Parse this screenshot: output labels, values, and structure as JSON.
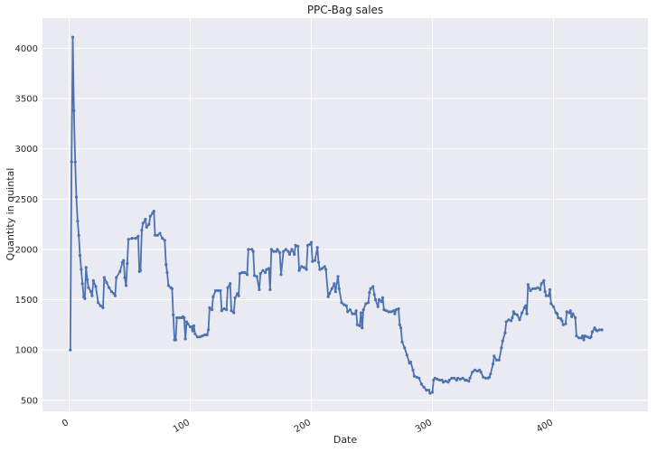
{
  "chart_data": {
    "type": "line",
    "title": "PPC-Bag sales",
    "xlabel": "Date",
    "ylabel": "Quantity in quintal",
    "xlim": [
      -22,
      478
    ],
    "ylim": [
      390,
      4300
    ],
    "x_ticks": [
      0,
      100,
      200,
      300,
      400
    ],
    "y_ticks": [
      500,
      1000,
      1500,
      2000,
      2500,
      3000,
      3500,
      4000
    ],
    "grid": true,
    "series": [
      {
        "color": "#4c72b0",
        "marker": "dot",
        "points": [
          [
            1,
            1000
          ],
          [
            2,
            2870
          ],
          [
            3,
            4110
          ],
          [
            4,
            3380
          ],
          [
            5,
            2870
          ],
          [
            6,
            2520
          ],
          [
            7,
            2280
          ],
          [
            8,
            2140
          ],
          [
            9,
            1940
          ],
          [
            10,
            1800
          ],
          [
            11,
            1660
          ],
          [
            12,
            1530
          ],
          [
            13,
            1510
          ],
          [
            14,
            1820
          ],
          [
            15,
            1700
          ],
          [
            16,
            1620
          ],
          [
            18,
            1580
          ],
          [
            19,
            1540
          ],
          [
            20,
            1690
          ],
          [
            22,
            1630
          ],
          [
            24,
            1470
          ],
          [
            26,
            1440
          ],
          [
            28,
            1420
          ],
          [
            29,
            1720
          ],
          [
            31,
            1670
          ],
          [
            33,
            1620
          ],
          [
            35,
            1580
          ],
          [
            37,
            1560
          ],
          [
            38,
            1540
          ],
          [
            39,
            1720
          ],
          [
            42,
            1780
          ],
          [
            44,
            1870
          ],
          [
            45,
            1890
          ],
          [
            46,
            1720
          ],
          [
            47,
            1640
          ],
          [
            48,
            1860
          ],
          [
            49,
            2100
          ],
          [
            52,
            2110
          ],
          [
            55,
            2110
          ],
          [
            57,
            2130
          ],
          [
            58,
            1780
          ],
          [
            59,
            1790
          ],
          [
            60,
            2190
          ],
          [
            61,
            2260
          ],
          [
            63,
            2300
          ],
          [
            64,
            2220
          ],
          [
            66,
            2250
          ],
          [
            67,
            2330
          ],
          [
            69,
            2360
          ],
          [
            70,
            2380
          ],
          [
            71,
            2140
          ],
          [
            73,
            2140
          ],
          [
            75,
            2160
          ],
          [
            77,
            2110
          ],
          [
            79,
            2090
          ],
          [
            80,
            1850
          ],
          [
            81,
            1770
          ],
          [
            82,
            1640
          ],
          [
            84,
            1620
          ],
          [
            85,
            1610
          ],
          [
            86,
            1350
          ],
          [
            87,
            1100
          ],
          [
            88,
            1100
          ],
          [
            89,
            1320
          ],
          [
            91,
            1320
          ],
          [
            93,
            1320
          ],
          [
            94,
            1330
          ],
          [
            95,
            1320
          ],
          [
            96,
            1110
          ],
          [
            97,
            1280
          ],
          [
            98,
            1260
          ],
          [
            100,
            1230
          ],
          [
            101,
            1230
          ],
          [
            102,
            1190
          ],
          [
            103,
            1240
          ],
          [
            104,
            1160
          ],
          [
            106,
            1130
          ],
          [
            108,
            1130
          ],
          [
            110,
            1140
          ],
          [
            112,
            1150
          ],
          [
            114,
            1150
          ],
          [
            115,
            1200
          ],
          [
            116,
            1420
          ],
          [
            118,
            1400
          ],
          [
            119,
            1530
          ],
          [
            121,
            1590
          ],
          [
            123,
            1590
          ],
          [
            125,
            1590
          ],
          [
            126,
            1390
          ],
          [
            128,
            1410
          ],
          [
            130,
            1400
          ],
          [
            131,
            1620
          ],
          [
            133,
            1660
          ],
          [
            134,
            1390
          ],
          [
            136,
            1370
          ],
          [
            137,
            1520
          ],
          [
            139,
            1560
          ],
          [
            140,
            1540
          ],
          [
            141,
            1760
          ],
          [
            143,
            1770
          ],
          [
            145,
            1770
          ],
          [
            147,
            1750
          ],
          [
            148,
            2000
          ],
          [
            151,
            2000
          ],
          [
            152,
            1980
          ],
          [
            153,
            1740
          ],
          [
            155,
            1730
          ],
          [
            157,
            1600
          ],
          [
            158,
            1760
          ],
          [
            160,
            1790
          ],
          [
            162,
            1770
          ],
          [
            163,
            1800
          ],
          [
            165,
            1810
          ],
          [
            166,
            1600
          ],
          [
            167,
            2000
          ],
          [
            169,
            1980
          ],
          [
            171,
            1980
          ],
          [
            172,
            2000
          ],
          [
            174,
            1970
          ],
          [
            175,
            1750
          ],
          [
            177,
            1980
          ],
          [
            179,
            2000
          ],
          [
            181,
            1980
          ],
          [
            182,
            1950
          ],
          [
            184,
            2000
          ],
          [
            186,
            1950
          ],
          [
            187,
            2040
          ],
          [
            189,
            2030
          ],
          [
            190,
            1790
          ],
          [
            192,
            1830
          ],
          [
            194,
            1820
          ],
          [
            196,
            1800
          ],
          [
            197,
            2040
          ],
          [
            199,
            2050
          ],
          [
            200,
            2070
          ],
          [
            201,
            1880
          ],
          [
            203,
            1890
          ],
          [
            205,
            2020
          ],
          [
            206,
            1870
          ],
          [
            207,
            1800
          ],
          [
            209,
            1810
          ],
          [
            211,
            1830
          ],
          [
            212,
            1800
          ],
          [
            214,
            1530
          ],
          [
            215,
            1560
          ],
          [
            217,
            1610
          ],
          [
            219,
            1660
          ],
          [
            220,
            1580
          ],
          [
            222,
            1730
          ],
          [
            223,
            1610
          ],
          [
            225,
            1470
          ],
          [
            227,
            1450
          ],
          [
            229,
            1440
          ],
          [
            230,
            1380
          ],
          [
            232,
            1400
          ],
          [
            234,
            1360
          ],
          [
            236,
            1360
          ],
          [
            237,
            1390
          ],
          [
            238,
            1250
          ],
          [
            240,
            1240
          ],
          [
            241,
            1370
          ],
          [
            242,
            1220
          ],
          [
            243,
            1400
          ],
          [
            245,
            1460
          ],
          [
            247,
            1470
          ],
          [
            248,
            1570
          ],
          [
            249,
            1610
          ],
          [
            251,
            1630
          ],
          [
            252,
            1550
          ],
          [
            253,
            1500
          ],
          [
            255,
            1430
          ],
          [
            256,
            1500
          ],
          [
            258,
            1480
          ],
          [
            259,
            1520
          ],
          [
            260,
            1400
          ],
          [
            262,
            1390
          ],
          [
            264,
            1380
          ],
          [
            266,
            1380
          ],
          [
            268,
            1390
          ],
          [
            269,
            1360
          ],
          [
            270,
            1400
          ],
          [
            272,
            1410
          ],
          [
            273,
            1250
          ],
          [
            274,
            1220
          ],
          [
            275,
            1080
          ],
          [
            277,
            1020
          ],
          [
            279,
            950
          ],
          [
            281,
            870
          ],
          [
            282,
            880
          ],
          [
            284,
            800
          ],
          [
            285,
            740
          ],
          [
            287,
            730
          ],
          [
            289,
            720
          ],
          [
            291,
            660
          ],
          [
            293,
            630
          ],
          [
            295,
            600
          ],
          [
            297,
            600
          ],
          [
            298,
            570
          ],
          [
            300,
            580
          ],
          [
            301,
            700
          ],
          [
            302,
            720
          ],
          [
            304,
            710
          ],
          [
            306,
            700
          ],
          [
            308,
            700
          ],
          [
            309,
            680
          ],
          [
            311,
            690
          ],
          [
            313,
            680
          ],
          [
            314,
            700
          ],
          [
            316,
            720
          ],
          [
            318,
            720
          ],
          [
            320,
            700
          ],
          [
            321,
            720
          ],
          [
            323,
            710
          ],
          [
            325,
            720
          ],
          [
            327,
            700
          ],
          [
            328,
            700
          ],
          [
            330,
            690
          ],
          [
            331,
            720
          ],
          [
            333,
            780
          ],
          [
            335,
            800
          ],
          [
            337,
            790
          ],
          [
            339,
            800
          ],
          [
            340,
            780
          ],
          [
            342,
            730
          ],
          [
            344,
            720
          ],
          [
            346,
            720
          ],
          [
            347,
            730
          ],
          [
            348,
            760
          ],
          [
            350,
            860
          ],
          [
            351,
            940
          ],
          [
            353,
            900
          ],
          [
            355,
            900
          ],
          [
            357,
            1020
          ],
          [
            358,
            1090
          ],
          [
            360,
            1170
          ],
          [
            361,
            1280
          ],
          [
            363,
            1300
          ],
          [
            365,
            1290
          ],
          [
            366,
            1320
          ],
          [
            367,
            1380
          ],
          [
            368,
            1360
          ],
          [
            370,
            1350
          ],
          [
            372,
            1300
          ],
          [
            374,
            1370
          ],
          [
            376,
            1420
          ],
          [
            377,
            1440
          ],
          [
            378,
            1360
          ],
          [
            379,
            1650
          ],
          [
            381,
            1590
          ],
          [
            383,
            1610
          ],
          [
            385,
            1610
          ],
          [
            387,
            1620
          ],
          [
            389,
            1600
          ],
          [
            390,
            1660
          ],
          [
            392,
            1690
          ],
          [
            393,
            1580
          ],
          [
            394,
            1540
          ],
          [
            396,
            1540
          ],
          [
            397,
            1600
          ],
          [
            398,
            1460
          ],
          [
            400,
            1430
          ],
          [
            402,
            1370
          ],
          [
            403,
            1360
          ],
          [
            404,
            1320
          ],
          [
            406,
            1310
          ],
          [
            407,
            1290
          ],
          [
            408,
            1250
          ],
          [
            410,
            1260
          ],
          [
            411,
            1380
          ],
          [
            413,
            1370
          ],
          [
            414,
            1390
          ],
          [
            415,
            1330
          ],
          [
            416,
            1360
          ],
          [
            418,
            1320
          ],
          [
            419,
            1140
          ],
          [
            421,
            1120
          ],
          [
            423,
            1120
          ],
          [
            424,
            1140
          ],
          [
            425,
            1100
          ],
          [
            426,
            1140
          ],
          [
            428,
            1130
          ],
          [
            430,
            1120
          ],
          [
            431,
            1130
          ],
          [
            432,
            1180
          ],
          [
            434,
            1220
          ],
          [
            435,
            1200
          ],
          [
            436,
            1190
          ],
          [
            438,
            1200
          ],
          [
            440,
            1200
          ]
        ]
      }
    ]
  }
}
